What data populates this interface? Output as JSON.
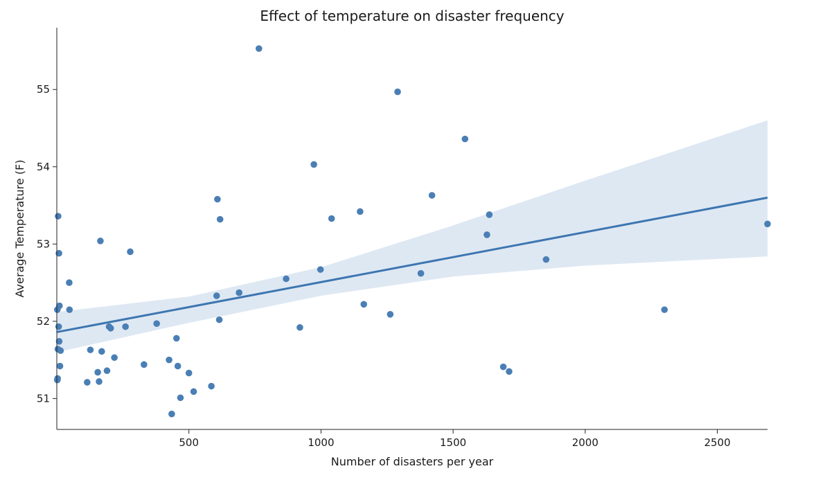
{
  "chart_data": {
    "type": "scatter",
    "title": "Effect of temperature on disaster frequency",
    "xlabel": "Number of disasters per year",
    "ylabel": "Average Temperature (F)",
    "xlim": [
      0,
      2690
    ],
    "ylim": [
      50.6,
      55.8
    ],
    "xticks": [
      500,
      1000,
      1500,
      2000,
      2500
    ],
    "yticks": [
      51,
      52,
      53,
      54,
      55
    ],
    "grid": false,
    "colors": {
      "points": "#4a7fb5",
      "line": "#3d76b0",
      "band": "#c8d9eb"
    },
    "regression": {
      "x": [
        0,
        2690
      ],
      "y": [
        51.86,
        53.6
      ]
    },
    "confidence_band": {
      "x": [
        0,
        500,
        1000,
        1500,
        2000,
        2690
      ],
      "lower": [
        51.6,
        51.98,
        52.33,
        52.58,
        52.72,
        52.84
      ],
      "upper": [
        52.12,
        52.32,
        52.7,
        53.24,
        53.82,
        54.6
      ]
    },
    "points": [
      {
        "x": 5,
        "y": 53.36
      },
      {
        "x": 8,
        "y": 52.88
      },
      {
        "x": 10,
        "y": 52.2
      },
      {
        "x": 2,
        "y": 52.15
      },
      {
        "x": 7,
        "y": 51.93
      },
      {
        "x": 9,
        "y": 51.74
      },
      {
        "x": 4,
        "y": 51.64
      },
      {
        "x": 14,
        "y": 51.62
      },
      {
        "x": 12,
        "y": 51.42
      },
      {
        "x": 3,
        "y": 51.26
      },
      {
        "x": 2,
        "y": 51.24
      },
      {
        "x": 47,
        "y": 52.5
      },
      {
        "x": 48,
        "y": 52.15
      },
      {
        "x": 115,
        "y": 51.21
      },
      {
        "x": 127,
        "y": 51.63
      },
      {
        "x": 155,
        "y": 51.34
      },
      {
        "x": 160,
        "y": 51.22
      },
      {
        "x": 165,
        "y": 53.04
      },
      {
        "x": 170,
        "y": 51.61
      },
      {
        "x": 190,
        "y": 51.36
      },
      {
        "x": 198,
        "y": 51.93
      },
      {
        "x": 204,
        "y": 51.91
      },
      {
        "x": 218,
        "y": 51.53
      },
      {
        "x": 260,
        "y": 51.93
      },
      {
        "x": 278,
        "y": 52.9
      },
      {
        "x": 330,
        "y": 51.44
      },
      {
        "x": 378,
        "y": 51.97
      },
      {
        "x": 425,
        "y": 51.5
      },
      {
        "x": 435,
        "y": 50.8
      },
      {
        "x": 453,
        "y": 51.78
      },
      {
        "x": 458,
        "y": 51.42
      },
      {
        "x": 468,
        "y": 51.01
      },
      {
        "x": 500,
        "y": 51.33
      },
      {
        "x": 518,
        "y": 51.09
      },
      {
        "x": 585,
        "y": 51.16
      },
      {
        "x": 605,
        "y": 52.33
      },
      {
        "x": 608,
        "y": 53.58
      },
      {
        "x": 615,
        "y": 52.02
      },
      {
        "x": 618,
        "y": 53.32
      },
      {
        "x": 690,
        "y": 52.37
      },
      {
        "x": 765,
        "y": 55.53
      },
      {
        "x": 868,
        "y": 52.55
      },
      {
        "x": 920,
        "y": 51.92
      },
      {
        "x": 973,
        "y": 54.03
      },
      {
        "x": 998,
        "y": 52.67
      },
      {
        "x": 1040,
        "y": 53.33
      },
      {
        "x": 1148,
        "y": 53.42
      },
      {
        "x": 1162,
        "y": 52.22
      },
      {
        "x": 1262,
        "y": 52.09
      },
      {
        "x": 1290,
        "y": 54.97
      },
      {
        "x": 1378,
        "y": 52.62
      },
      {
        "x": 1420,
        "y": 53.63
      },
      {
        "x": 1545,
        "y": 54.36
      },
      {
        "x": 1628,
        "y": 53.12
      },
      {
        "x": 1637,
        "y": 53.38
      },
      {
        "x": 1690,
        "y": 51.41
      },
      {
        "x": 1712,
        "y": 51.35
      },
      {
        "x": 1852,
        "y": 52.8
      },
      {
        "x": 2300,
        "y": 52.15
      },
      {
        "x": 2690,
        "y": 53.26
      }
    ]
  }
}
